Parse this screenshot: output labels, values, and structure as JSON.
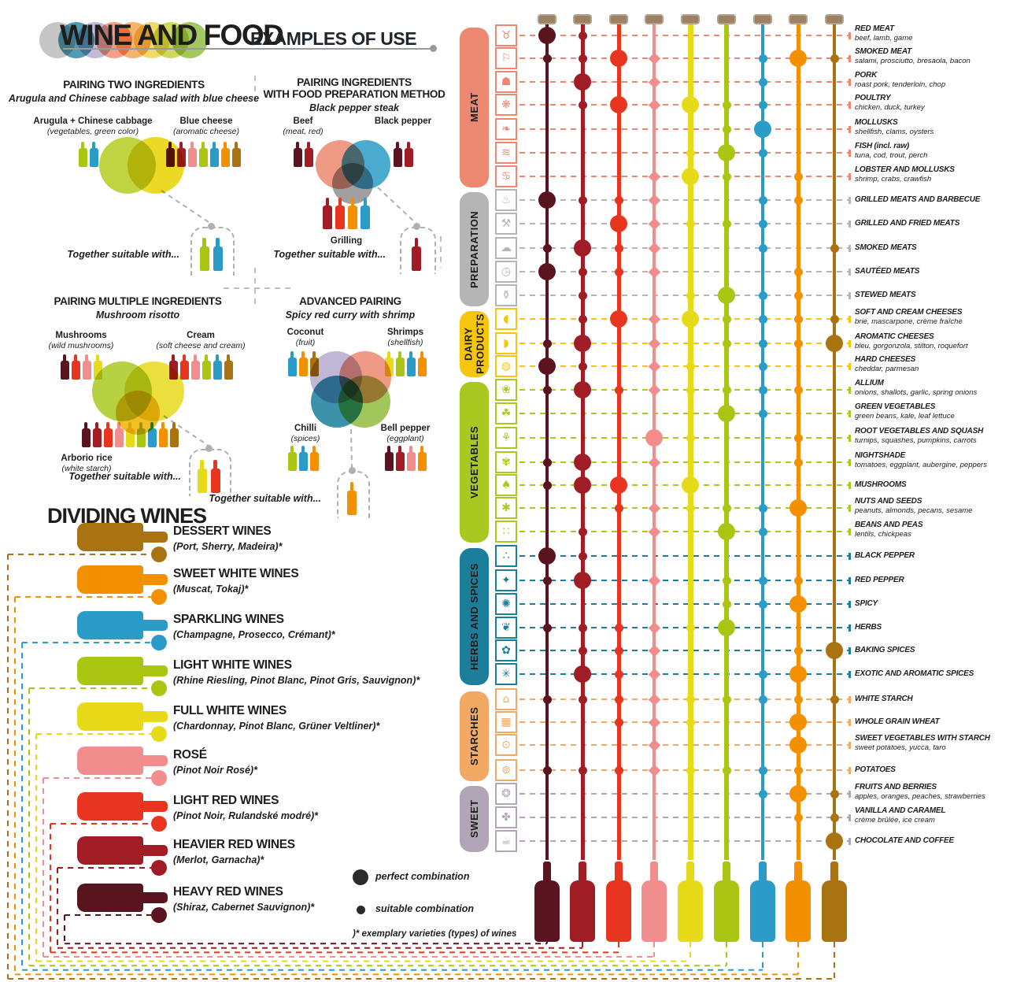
{
  "header": {
    "title": "WINE AND FOOD",
    "subtitle": "EXAMPLES OF USE",
    "logo_colors": [
      "#b9b9b9",
      "#2b85a0",
      "#b4aacd",
      "#ef8a70",
      "#f2a24e",
      "#ecd24a",
      "#c3d141",
      "#8fbc3f"
    ]
  },
  "panels": [
    {
      "id": "two-ingredients",
      "title_lines": [
        "PAIRING TWO INGREDIENTS"
      ],
      "subtitle": "Arugula and Chinese cabbage salad with blue cheese",
      "items": [
        {
          "name": "Arugula + Chinese cabbage",
          "sub": "(vegetables, green color)",
          "bottles": [
            "#abc513",
            "#2b9cc7"
          ]
        },
        {
          "name": "Blue cheese",
          "sub": "(aromatic cheese)",
          "bottles": [
            "#5a1420",
            "#a01d26",
            "#f18d8d",
            "#abc513",
            "#2b9cc7",
            "#f39000",
            "#aa7312"
          ]
        }
      ],
      "venn": [
        "#b5cc1e",
        "#e8d200"
      ],
      "result": {
        "label": "Together suitable with...",
        "bottles": [
          "#abc513",
          "#2b9cc7"
        ]
      }
    },
    {
      "id": "preparation-method",
      "title_lines": [
        "PAIRING INGREDIENTS",
        "WITH FOOD PREPARATION METHOD"
      ],
      "subtitle": "Black pepper steak",
      "items": [
        {
          "name": "Beef",
          "sub": "(meat, red)",
          "bottles": [
            "#5a1420",
            "#a01d26"
          ]
        },
        {
          "name": "Black pepper",
          "sub": "",
          "bottles": [
            "#5a1420",
            "#a01d26"
          ]
        }
      ],
      "venn": [
        "#ec8870",
        "#2b9cc7",
        "#8f8f8f"
      ],
      "method_label": "Grilling",
      "method_bottles": [
        "#a01d26",
        "#e8351f",
        "#f39000",
        "#2b9cc7"
      ],
      "result": {
        "label": "Together suitable with...",
        "bottles": [
          "#a01d26"
        ]
      }
    },
    {
      "id": "multiple-ingredients",
      "title_lines": [
        "PAIRING MULTIPLE INGREDIENTS"
      ],
      "subtitle": "Mushroom risotto",
      "items": [
        {
          "name": "Mushrooms",
          "sub": "(wild mushrooms)",
          "bottles": [
            "#5a1420",
            "#e8351f",
            "#f18d8d",
            "#e7da19"
          ]
        },
        {
          "name": "Cream",
          "sub": "(soft cheese and cream)",
          "bottles": [
            "#a01d26",
            "#e8351f",
            "#f18d8d",
            "#abc513",
            "#2b9cc7",
            "#aa7312"
          ]
        },
        {
          "name": "Arborio rice",
          "sub": "(white starch)",
          "bottles": [
            "#5a1420",
            "#a01d26",
            "#e8351f",
            "#f18d8d",
            "#e7da19",
            "#abc513",
            "#2b9cc7",
            "#f39000",
            "#aa7312"
          ]
        }
      ],
      "venn": [
        "#a9c920",
        "#e7da19",
        "#f0b400"
      ],
      "result": {
        "label": "Together suitable with...",
        "bottles": [
          "#e7da19",
          "#e8351f"
        ]
      }
    },
    {
      "id": "advanced-pairing",
      "title_lines": [
        "ADVANCED PAIRING"
      ],
      "subtitle": "Spicy red curry with shrimp",
      "items": [
        {
          "name": "Coconut",
          "sub": "(fruit)",
          "bottles": [
            "#2b9cc7",
            "#f39000",
            "#aa7312"
          ]
        },
        {
          "name": "Shrimps",
          "sub": "(shellfish)",
          "bottles": [
            "#e7da19",
            "#abc513",
            "#2b9cc7",
            "#f39000"
          ]
        },
        {
          "name": "Chilli",
          "sub": "(spices)",
          "bottles": [
            "#abc513",
            "#2b9cc7",
            "#f39000"
          ]
        },
        {
          "name": "Bell pepper",
          "sub": "(eggplant)",
          "bottles": [
            "#5a1420",
            "#a01d26",
            "#f18d8d",
            "#f39000"
          ]
        }
      ],
      "venn": [
        "#b4aacd",
        "#ec8870",
        "#1b7f9c",
        "#8fbc3f"
      ],
      "result": {
        "label": "Together suitable with...",
        "bottles": [
          "#f39000"
        ]
      }
    }
  ],
  "dividing_wines": {
    "title": "DIVIDING WINES",
    "wines": [
      {
        "name": "DESSERT WINES",
        "varieties": "(Port, Sherry, Madeira)*",
        "color": "#aa7312"
      },
      {
        "name": "SWEET WHITE WINES",
        "varieties": "(Muscat, Tokaj)*",
        "color": "#f39000"
      },
      {
        "name": "SPARKLING WINES",
        "varieties": "(Champagne, Prosecco, Crémant)*",
        "color": "#2b9cc7"
      },
      {
        "name": "LIGHT WHITE WINES",
        "varieties": "(Rhine Riesling, Pinot Blanc, Pinot Gris, Sauvignon)*",
        "color": "#abc513"
      },
      {
        "name": "FULL WHITE WINES",
        "varieties": "(Chardonnay, Pinot Blanc, Grüner Veltliner)*",
        "color": "#e7da19"
      },
      {
        "name": "ROSÉ",
        "varieties": "(Pinot Noir Rosé)*",
        "color": "#f18d8d"
      },
      {
        "name": "LIGHT RED WINES",
        "varieties": "(Pinot Noir, Rulandské modré)*",
        "color": "#e8351f"
      },
      {
        "name": "HEAVIER RED WINES",
        "varieties": "(Merlot, Garnacha)*",
        "color": "#a01d26"
      },
      {
        "name": "HEAVY RED WINES",
        "varieties": "(Shiraz, Cabernet Sauvignon)*",
        "color": "#5a1420"
      }
    ]
  },
  "legend": {
    "perfect": "perfect combination",
    "suitable": "suitable combination",
    "note": ")* exemplary varieties (types) of wines"
  },
  "matrix": {
    "wine_columns": [
      {
        "id": "heavy-red",
        "color": "#5a1420"
      },
      {
        "id": "heavier-red",
        "color": "#a01d26"
      },
      {
        "id": "light-red",
        "color": "#e8351f"
      },
      {
        "id": "rose",
        "color": "#f18d8d"
      },
      {
        "id": "full-white",
        "color": "#e7da19"
      },
      {
        "id": "light-white",
        "color": "#abc513"
      },
      {
        "id": "sparkling",
        "color": "#2b9cc7"
      },
      {
        "id": "sweet-white",
        "color": "#f39000"
      },
      {
        "id": "dessert",
        "color": "#aa7312"
      }
    ],
    "categories": [
      {
        "label": "MEAT",
        "color": "#ec8870",
        "rows": [
          {
            "label": "RED MEAT",
            "sub": "beef, lamb, game",
            "icon": "cow-icon",
            "glyph": "♉",
            "dots": [
              2,
              1,
              0,
              0,
              0,
              0,
              0,
              0,
              0
            ]
          },
          {
            "label": "SMOKED MEAT",
            "sub": "salami, prosciutto, bresaola, bacon",
            "icon": "ham-icon",
            "glyph": "⚐",
            "dots": [
              1,
              1,
              2,
              1,
              0,
              0,
              1,
              2,
              1
            ]
          },
          {
            "label": "PORK",
            "sub": "roast pork, tenderloin, chop",
            "icon": "pig-icon",
            "glyph": "☗",
            "dots": [
              0,
              2,
              0,
              1,
              0,
              0,
              1,
              0,
              0
            ]
          },
          {
            "label": "POULTRY",
            "sub": "chicken, duck, turkey",
            "icon": "poultry-icon",
            "glyph": "❋",
            "dots": [
              0,
              1,
              2,
              1,
              2,
              1,
              1,
              0,
              0
            ]
          },
          {
            "label": "MOLLUSKS",
            "sub": "shellfish, clams, oysters",
            "icon": "shellfish-icon",
            "glyph": "❧",
            "dots": [
              0,
              0,
              0,
              0,
              0,
              1,
              2,
              0,
              0
            ]
          },
          {
            "label": "FISH (incl. raw)",
            "sub": "tuna, cod, trout, perch",
            "icon": "fish-icon",
            "glyph": "≋",
            "dots": [
              0,
              0,
              0,
              0,
              1,
              2,
              1,
              0,
              0
            ]
          },
          {
            "label": "LOBSTER AND MOLLUSKS",
            "sub": "shrimp, crabs, crawfish",
            "icon": "crab-icon",
            "glyph": "♋",
            "dots": [
              0,
              0,
              0,
              1,
              2,
              1,
              0,
              1,
              0
            ]
          }
        ]
      },
      {
        "label": "PREPARATION",
        "color": "#b5b5b5",
        "rows": [
          {
            "label": "GRILLED MEATS AND BARBECUE",
            "sub": "",
            "icon": "barbecue-icon",
            "glyph": "♨",
            "dots": [
              2,
              1,
              1,
              1,
              0,
              0,
              1,
              1,
              0
            ]
          },
          {
            "label": "GRILLED AND FRIED MEATS",
            "sub": "",
            "icon": "skillet-icon",
            "glyph": "⚒",
            "dots": [
              0,
              0,
              2,
              1,
              1,
              1,
              1,
              0,
              0
            ]
          },
          {
            "label": "SMOKED MEATS",
            "sub": "",
            "icon": "smoker-icon",
            "glyph": "☁",
            "dots": [
              1,
              2,
              1,
              1,
              0,
              0,
              1,
              0,
              1
            ]
          },
          {
            "label": "SAUTÉED MEATS",
            "sub": "",
            "icon": "timer-icon",
            "glyph": "◷",
            "dots": [
              2,
              1,
              1,
              1,
              0,
              0,
              0,
              1,
              0
            ]
          },
          {
            "label": "STEWED MEATS",
            "sub": "",
            "icon": "stewpot-icon",
            "glyph": "⚱",
            "dots": [
              0,
              1,
              0,
              0,
              1,
              2,
              1,
              1,
              0
            ]
          }
        ]
      },
      {
        "label": "DAIRY PRODUCTS",
        "color": "#f6c50e",
        "rows": [
          {
            "label": "SOFT AND CREAM CHEESES",
            "sub": "brie, mascarpone, crème fraîche",
            "icon": "soft-cheese-icon",
            "glyph": "◖",
            "dots": [
              0,
              1,
              2,
              1,
              2,
              1,
              1,
              1,
              1
            ]
          },
          {
            "label": "AROMATIC CHEESES",
            "sub": "bleu, gorgonzola, stilton, roquefort",
            "icon": "aromatic-cheese-icon",
            "glyph": "◗",
            "dots": [
              1,
              2,
              0,
              1,
              0,
              1,
              1,
              1,
              2
            ]
          },
          {
            "label": "HARD CHEESES",
            "sub": "cheddar, parmesan",
            "icon": "hard-cheese-icon",
            "glyph": "◍",
            "dots": [
              2,
              1,
              0,
              1,
              1,
              0,
              1,
              0,
              0
            ]
          }
        ]
      },
      {
        "label": "VEGETABLES",
        "color": "#a9c920",
        "rows": [
          {
            "label": "ALLIUM",
            "sub": "onions, shallots, garlic, spring onions",
            "icon": "onion-icon",
            "glyph": "❀",
            "dots": [
              1,
              2,
              1,
              1,
              1,
              1,
              1,
              1,
              0
            ]
          },
          {
            "label": "GREEN VEGETABLES",
            "sub": "green beans, kale, leaf lettuce",
            "icon": "leafy-greens-icon",
            "glyph": "☘",
            "dots": [
              0,
              0,
              0,
              0,
              0,
              2,
              1,
              0,
              0
            ]
          },
          {
            "label": "ROOT VEGETABLES AND SQUASH",
            "sub": "turnips, squashes, pumpkins, carrots",
            "icon": "root-vegetable-icon",
            "glyph": "⚘",
            "dots": [
              0,
              0,
              0,
              2,
              1,
              0,
              0,
              1,
              0
            ]
          },
          {
            "label": "NIGHTSHADE",
            "sub": "tomatoes, eggplant, aubergine, peppers",
            "icon": "tomato-icon",
            "glyph": "✾",
            "dots": [
              1,
              2,
              0,
              1,
              0,
              0,
              0,
              1,
              0
            ]
          },
          {
            "label": "MUSHROOMS",
            "sub": "",
            "icon": "mushroom-icon",
            "glyph": "♠",
            "dots": [
              1,
              2,
              2,
              0,
              2,
              0,
              0,
              0,
              0
            ]
          },
          {
            "label": "NUTS AND SEEDS",
            "sub": "peanuts, almonds, pecans, sesame",
            "icon": "nuts-seeds-icon",
            "glyph": "✱",
            "dots": [
              0,
              0,
              1,
              1,
              1,
              1,
              1,
              2,
              0
            ]
          },
          {
            "label": "BEANS AND PEAS",
            "sub": "lentils, chickpeas",
            "icon": "beans-peas-icon",
            "glyph": "∷",
            "dots": [
              0,
              1,
              0,
              1,
              0,
              2,
              1,
              0,
              0
            ]
          }
        ]
      },
      {
        "label": "HERBS AND SPICES",
        "color": "#1b7f9c",
        "rows": [
          {
            "label": "BLACK PEPPER",
            "sub": "",
            "icon": "peppercorns-icon",
            "glyph": "∴",
            "dots": [
              2,
              1,
              0,
              0,
              0,
              0,
              0,
              0,
              0
            ]
          },
          {
            "label": "RED PEPPER",
            "sub": "",
            "icon": "chili-pepper-icon",
            "glyph": "✦",
            "dots": [
              1,
              2,
              0,
              1,
              0,
              1,
              1,
              1,
              0
            ]
          },
          {
            "label": "SPICY",
            "sub": "",
            "icon": "spicy-icon",
            "glyph": "✺",
            "dots": [
              0,
              0,
              0,
              0,
              0,
              1,
              1,
              2,
              0
            ]
          },
          {
            "label": "HERBS",
            "sub": "",
            "icon": "herbs-icon",
            "glyph": "❦",
            "dots": [
              1,
              1,
              1,
              1,
              1,
              2,
              0,
              0,
              0
            ]
          },
          {
            "label": "BAKING SPICES",
            "sub": "",
            "icon": "baking-spices-icon",
            "glyph": "✿",
            "dots": [
              0,
              1,
              1,
              1,
              0,
              0,
              0,
              1,
              2
            ]
          },
          {
            "label": "EXOTIC AND AROMATIC SPICES",
            "sub": "",
            "icon": "star-anise-icon",
            "glyph": "✳",
            "dots": [
              0,
              2,
              1,
              1,
              0,
              0,
              1,
              2,
              0
            ]
          }
        ]
      },
      {
        "label": "STARCHES",
        "color": "#f2a964",
        "rows": [
          {
            "label": "WHITE STARCH",
            "sub": "",
            "icon": "bread-icon",
            "glyph": "⌂",
            "dots": [
              1,
              1,
              1,
              1,
              1,
              1,
              1,
              1,
              1
            ]
          },
          {
            "label": "WHOLE GRAIN WHEAT",
            "sub": "",
            "icon": "whole-grain-icon",
            "glyph": "▦",
            "dots": [
              0,
              0,
              1,
              1,
              1,
              0,
              0,
              2,
              0
            ]
          },
          {
            "label": "SWEET VEGETABLES WITH STARCH",
            "sub": "sweet potatoes, yucca, taro",
            "icon": "sweet-potato-icon",
            "glyph": "⊙",
            "dots": [
              0,
              0,
              0,
              1,
              0,
              0,
              0,
              2,
              0
            ]
          },
          {
            "label": "POTATOES",
            "sub": "",
            "icon": "potatoes-icon",
            "glyph": "⊚",
            "dots": [
              1,
              1,
              1,
              1,
              1,
              1,
              1,
              1,
              0
            ]
          }
        ]
      },
      {
        "label": "SWEET",
        "color": "#b3a5b8",
        "rows": [
          {
            "label": "FRUITS AND BERRIES",
            "sub": "apples, oranges, peaches, strawberries",
            "icon": "fruits-icon",
            "glyph": "❂",
            "dots": [
              0,
              0,
              0,
              0,
              0,
              0,
              1,
              2,
              1
            ]
          },
          {
            "label": "VANILLA AND CARAMEL",
            "sub": "crème brûlée, ice cream",
            "icon": "vanilla-icon",
            "glyph": "✤",
            "dots": [
              0,
              0,
              0,
              0,
              0,
              0,
              0,
              1,
              1
            ]
          },
          {
            "label": "CHOCOLATE AND COFFEE",
            "sub": "",
            "icon": "coffee-icon",
            "glyph": "☕",
            "dots": [
              0,
              0,
              0,
              0,
              0,
              0,
              0,
              0,
              2
            ]
          }
        ]
      }
    ]
  }
}
